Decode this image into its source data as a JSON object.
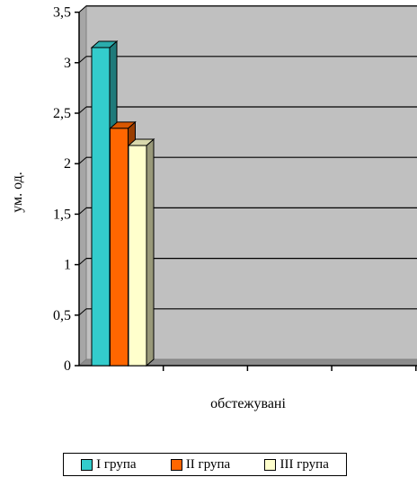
{
  "chart_data": {
    "type": "bar",
    "style": "3d-clustered-column",
    "title": "",
    "xlabel": "обстежувані",
    "ylabel": "ум. од.",
    "ylim": [
      0,
      3.5
    ],
    "y_ticks": [
      "0",
      "0,5",
      "1",
      "1,5",
      "2",
      "2,5",
      "3",
      "3,5"
    ],
    "y_tick_values": [
      0,
      0.5,
      1,
      1.5,
      2,
      2.5,
      3,
      3.5
    ],
    "categories": [
      ""
    ],
    "category_slots": 4,
    "grid": true,
    "legend_position": "bottom",
    "plot_background": "#c0c0c0",
    "series": [
      {
        "name": "І група",
        "values": [
          3.15
        ],
        "color": "#33cccc"
      },
      {
        "name": "ІІ група",
        "values": [
          2.35
        ],
        "color": "#ff6600"
      },
      {
        "name": "ІІІ група",
        "values": [
          2.18
        ],
        "color": "#ffffcc"
      }
    ]
  }
}
